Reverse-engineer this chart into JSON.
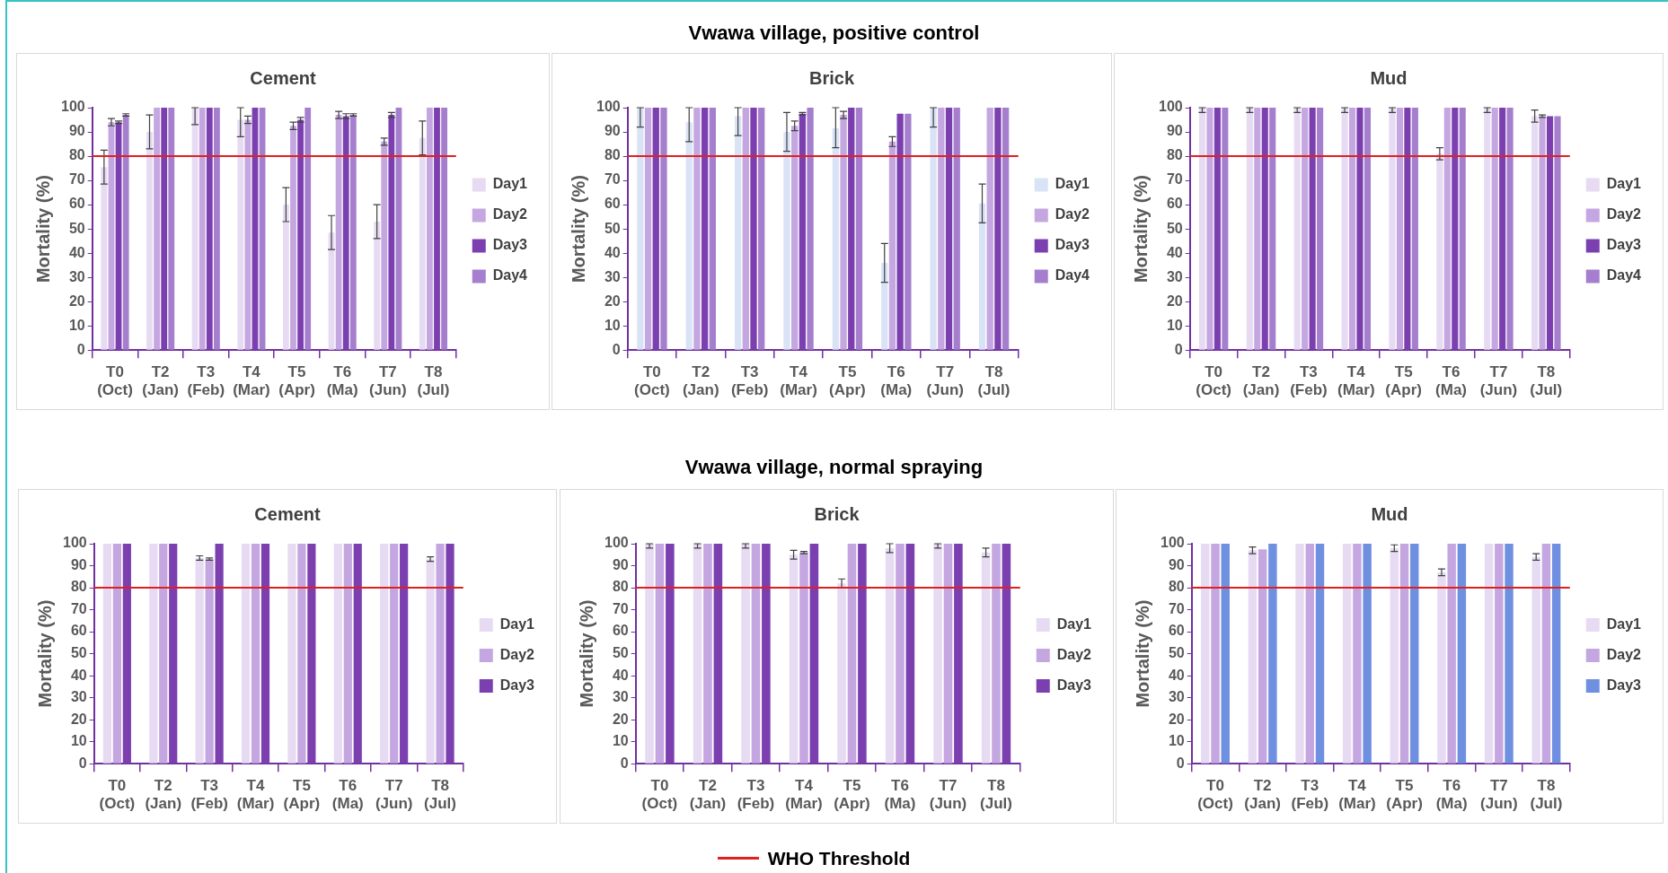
{
  "chart_data": [
    {
      "type": "bar",
      "title": "Cement",
      "ylabel": "Mortality (%)",
      "annotations": [
        "Vwawa village, positive control"
      ],
      "categories": [
        "T0 (Oct)",
        "T2 (Jan)",
        "T3 (Feb)",
        "T4 (Mar)",
        "T5 (Apr)",
        "T6 (Ma)",
        "T7 (Jun)",
        "T8 (Jul)"
      ],
      "series": [
        {
          "name": "Day1",
          "color": "#e6dbf2",
          "values": [
            75.5,
            90,
            100,
            95,
            60,
            48.5,
            53,
            87.5
          ],
          "errors": [
            7,
            7,
            [
              93,
              100
            ],
            [
              88,
              100
            ],
            7,
            7,
            7,
            7
          ]
        },
        {
          "name": "Day2",
          "color": "#c4a6e0",
          "values": [
            94,
            100,
            100,
            95,
            92.5,
            97,
            86,
            100
          ],
          "errors": [
            1.5,
            null,
            null,
            1.5,
            1.5,
            1.5,
            1.5,
            null
          ]
        },
        {
          "name": "Day3",
          "color": "#7b3fb0",
          "values": [
            94,
            100,
            100,
            100,
            95,
            96.5,
            97,
            100
          ],
          "errors": [
            0.5,
            null,
            null,
            null,
            1,
            1,
            1,
            null
          ]
        },
        {
          "name": "Day4",
          "color": "#a57fcd",
          "values": [
            97,
            100,
            100,
            100,
            100,
            97,
            100,
            100
          ],
          "errors": [
            0.5,
            null,
            null,
            null,
            null,
            0.5,
            null,
            null
          ]
        }
      ],
      "ylim": [
        0,
        100
      ],
      "yticks": [
        0,
        10,
        20,
        30,
        40,
        50,
        60,
        70,
        80,
        90,
        100
      ],
      "legend": "right",
      "ref_lines": [
        {
          "axis": "y",
          "value": 80,
          "color": "#e02020"
        }
      ]
    },
    {
      "type": "bar",
      "title": "Brick",
      "ylabel": "Mortality (%)",
      "categories": [
        "T0 (Oct)",
        "T2 (Jan)",
        "T3 (Feb)",
        "T4 (Mar)",
        "T5 (Apr)",
        "T6 (Ma)",
        "T7 (Jun)",
        "T8 (Jul)"
      ],
      "series": [
        {
          "name": "Day1",
          "color": "#d9e3f6",
          "values": [
            100,
            94,
            96.5,
            90,
            91.5,
            36,
            100,
            60.5
          ],
          "errors": [
            [
              92,
              100
            ],
            [
              86,
              100
            ],
            [
              88.5,
              100
            ],
            8,
            [
              83.5,
              100
            ],
            8,
            [
              92,
              100
            ],
            8
          ]
        },
        {
          "name": "Day2",
          "color": "#c4a6e0",
          "values": [
            100,
            100,
            100,
            92.5,
            97,
            86,
            100,
            100
          ],
          "errors": [
            null,
            null,
            null,
            2,
            1.5,
            2,
            null,
            null
          ]
        },
        {
          "name": "Day3",
          "color": "#7b3fb0",
          "values": [
            100,
            100,
            100,
            97.5,
            100,
            97.5,
            100,
            100
          ],
          "errors": [
            null,
            null,
            null,
            0.5,
            null,
            null,
            null,
            null
          ]
        },
        {
          "name": "Day4",
          "color": "#a57fcd",
          "values": [
            100,
            100,
            100,
            100,
            100,
            97.5,
            100,
            100
          ]
        }
      ],
      "ylim": [
        0,
        100
      ],
      "yticks": [
        0,
        10,
        20,
        30,
        40,
        50,
        60,
        70,
        80,
        90,
        100
      ],
      "legend": "right",
      "ref_lines": [
        {
          "axis": "y",
          "value": 80,
          "color": "#e02020"
        }
      ]
    },
    {
      "type": "bar",
      "title": "Mud",
      "ylabel": "Mortality (%)",
      "categories": [
        "T0 (Oct)",
        "T2 (Jan)",
        "T3 (Feb)",
        "T4 (Mar)",
        "T5 (Apr)",
        "T6 (Ma)",
        "T7 (Jun)",
        "T8 (Jul)"
      ],
      "series": [
        {
          "name": "Day1",
          "color": "#e6dbf2",
          "values": [
            100,
            100,
            100,
            100,
            100,
            81,
            100,
            96.5
          ],
          "errors": [
            [
              98,
              100
            ],
            [
              98,
              100
            ],
            [
              98,
              100
            ],
            [
              98,
              100
            ],
            [
              98,
              100
            ],
            2.5,
            [
              98,
              100
            ],
            2.5
          ]
        },
        {
          "name": "Day2",
          "color": "#c4a6e0",
          "values": [
            100,
            100,
            100,
            100,
            100,
            100,
            100,
            96.5
          ],
          "errors": [
            null,
            null,
            null,
            null,
            null,
            null,
            null,
            0.5
          ]
        },
        {
          "name": "Day3",
          "color": "#7b3fb0",
          "values": [
            100,
            100,
            100,
            100,
            100,
            100,
            100,
            96.5
          ]
        },
        {
          "name": "Day4",
          "color": "#a57fcd",
          "values": [
            100,
            100,
            100,
            100,
            100,
            100,
            100,
            96.5
          ]
        }
      ],
      "ylim": [
        0,
        100
      ],
      "yticks": [
        0,
        10,
        20,
        30,
        40,
        50,
        60,
        70,
        80,
        90,
        100
      ],
      "legend": "right",
      "ref_lines": [
        {
          "axis": "y",
          "value": 80,
          "color": "#e02020"
        }
      ]
    },
    {
      "type": "bar",
      "title": "Cement",
      "ylabel": "Mortality (%)",
      "annotations": [
        "Vwawa village, normal spraying"
      ],
      "categories": [
        "T0 (Oct)",
        "T2 (Jan)",
        "T3 (Feb)",
        "T4 (Mar)",
        "T5 (Apr)",
        "T6 (Ma)",
        "T7 (Jun)",
        "T8 (Jul)"
      ],
      "series": [
        {
          "name": "Day1",
          "color": "#e6dbf2",
          "values": [
            100,
            100,
            93.5,
            100,
            100,
            100,
            100,
            93
          ],
          "errors": [
            null,
            null,
            1,
            null,
            null,
            null,
            null,
            1
          ]
        },
        {
          "name": "Day2",
          "color": "#c4a6e0",
          "values": [
            100,
            100,
            93,
            100,
            100,
            100,
            100,
            100
          ],
          "errors": [
            null,
            null,
            0.5,
            null,
            null,
            null,
            null,
            null
          ]
        },
        {
          "name": "Day3",
          "color": "#7b3fb0",
          "values": [
            100,
            100,
            100,
            100,
            100,
            100,
            100,
            100
          ]
        }
      ],
      "ylim": [
        0,
        100
      ],
      "yticks": [
        0,
        10,
        20,
        30,
        40,
        50,
        60,
        70,
        80,
        90,
        100
      ],
      "legend": "right",
      "ref_lines": [
        {
          "axis": "y",
          "value": 80,
          "color": "#e02020"
        }
      ]
    },
    {
      "type": "bar",
      "title": "Brick",
      "ylabel": "Mortality (%)",
      "categories": [
        "T0 (Oct)",
        "T2 (Jan)",
        "T3 (Feb)",
        "T4 (Mar)",
        "T5 (Apr)",
        "T6 (Ma)",
        "T7 (Jun)",
        "T8 (Jul)"
      ],
      "series": [
        {
          "name": "Day1",
          "color": "#e6dbf2",
          "values": [
            100,
            100,
            100,
            95,
            82,
            98,
            100,
            96
          ],
          "errors": [
            [
              98,
              100
            ],
            [
              98,
              100
            ],
            [
              98,
              100
            ],
            2,
            2,
            2,
            [
              98,
              100
            ],
            2
          ]
        },
        {
          "name": "Day2",
          "color": "#c4a6e0",
          "values": [
            100,
            100,
            100,
            96,
            100,
            100,
            100,
            100
          ],
          "errors": [
            null,
            null,
            null,
            0.5,
            null,
            null,
            null,
            null
          ]
        },
        {
          "name": "Day3",
          "color": "#7b3fb0",
          "values": [
            100,
            100,
            100,
            100,
            100,
            100,
            100,
            100
          ]
        }
      ],
      "ylim": [
        0,
        100
      ],
      "yticks": [
        0,
        10,
        20,
        30,
        40,
        50,
        60,
        70,
        80,
        90,
        100
      ],
      "legend": "right",
      "ref_lines": [
        {
          "axis": "y",
          "value": 80,
          "color": "#e02020",
          "label": "WHO Threshold"
        }
      ]
    },
    {
      "type": "bar",
      "title": "Mud",
      "ylabel": "Mortality (%)",
      "categories": [
        "T0 (Oct)",
        "T2 (Jan)",
        "T3 (Feb)",
        "T4 (Mar)",
        "T5 (Apr)",
        "T6 (Ma)",
        "T7 (Jun)",
        "T8 (Jul)"
      ],
      "series": [
        {
          "name": "Day1",
          "color": "#e6dbf2",
          "values": [
            100,
            97,
            100,
            100,
            98,
            87,
            100,
            94
          ],
          "errors": [
            null,
            1.5,
            null,
            null,
            1.5,
            1.5,
            null,
            1.5
          ]
        },
        {
          "name": "Day2",
          "color": "#c4a6e0",
          "values": [
            100,
            97.5,
            100,
            100,
            100,
            100,
            100,
            100
          ]
        },
        {
          "name": "Day3",
          "color": "#6f8fe0",
          "values": [
            100,
            100,
            100,
            100,
            100,
            100,
            100,
            100
          ]
        }
      ],
      "ylim": [
        0,
        100
      ],
      "yticks": [
        0,
        10,
        20,
        30,
        40,
        50,
        60,
        70,
        80,
        90,
        100
      ],
      "legend": "right",
      "ref_lines": [
        {
          "axis": "y",
          "value": 80,
          "color": "#e02020"
        }
      ]
    }
  ]
}
